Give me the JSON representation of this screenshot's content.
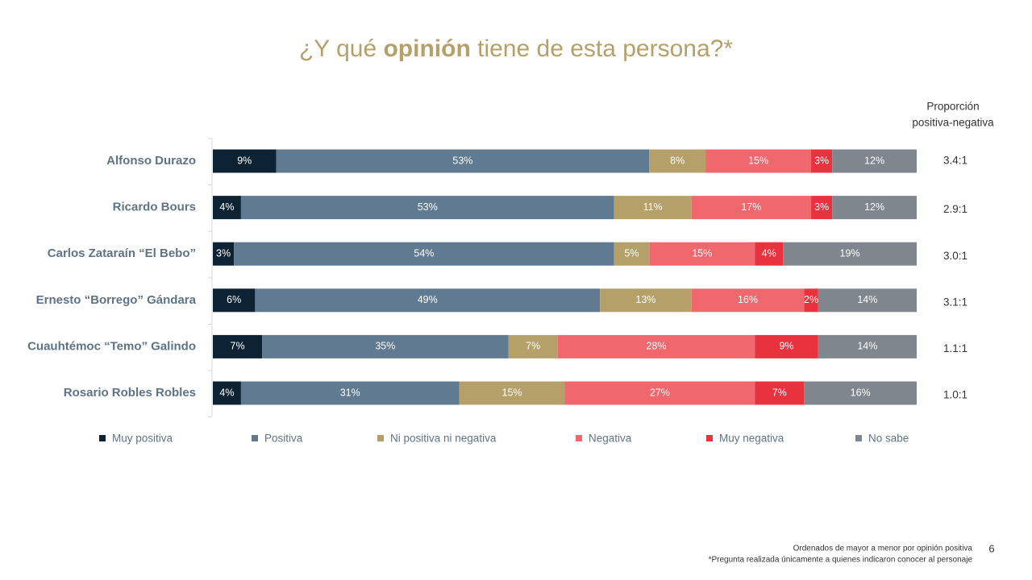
{
  "chart_data": {
    "type": "stacked-bar-horizontal",
    "title": "¿Y qué opinión tiene de esta persona?*",
    "title_bold": "opinión",
    "categories": [
      "Alfonso Durazo",
      "Ricardo Bours",
      "Carlos Zataraín “El Bebo”",
      "Ernesto “Borrego” Gándara",
      "Cuauhtémoc “Temo” Galindo",
      "Rosario Robles Robles"
    ],
    "series": [
      {
        "name": "Muy positiva",
        "color": "#0d2233",
        "values": [
          9,
          4,
          3,
          6,
          7,
          4
        ],
        "value_labels": [
          "9%",
          "4%",
          "3%",
          "6%",
          "7%",
          "4%"
        ]
      },
      {
        "name": "Positiva",
        "color": "#5f7a91",
        "values": [
          53,
          53,
          54,
          49,
          35,
          31
        ],
        "value_labels": [
          "53%",
          "53%",
          "54%",
          "49%",
          "35%",
          "31%"
        ]
      },
      {
        "name": "Ni positiva ni negativa",
        "color": "#b5a06a",
        "values": [
          8,
          11,
          5,
          13,
          7,
          15
        ],
        "value_labels": [
          "8%",
          "11%",
          "5%",
          "13%",
          "7%",
          "15%"
        ]
      },
      {
        "name": "Negativa",
        "color": "#f0686e",
        "values": [
          15,
          17,
          15,
          16,
          28,
          27
        ],
        "value_labels": [
          "15%",
          "17%",
          "15%",
          "16%",
          "28%",
          "27%"
        ]
      },
      {
        "name": "Muy negativa",
        "color": "#e8333f",
        "values": [
          3,
          3,
          4,
          2,
          9,
          7
        ],
        "value_labels": [
          "3%",
          "3%",
          "4%",
          "2%",
          "9%",
          "7%"
        ]
      },
      {
        "name": "No sabe",
        "color": "#7f868d",
        "values": [
          12,
          12,
          19,
          14,
          14,
          16
        ],
        "value_labels": [
          "12%",
          "12%",
          "19%",
          "14%",
          "14%",
          "16%"
        ]
      }
    ],
    "xlim": [
      0,
      100
    ],
    "ratio_title": [
      "Proporción",
      "positiva-negativa"
    ],
    "ratios": [
      "3.4:1",
      "2.9:1",
      "3.0:1",
      "3.1:1",
      "1.1:1",
      "1.0:1"
    ],
    "footnotes": [
      "Ordenados de mayor a menor por opinión positiva",
      "*Pregunta realizada únicamente a quienes indicaron conocer al personaje"
    ],
    "page_number": "6"
  }
}
